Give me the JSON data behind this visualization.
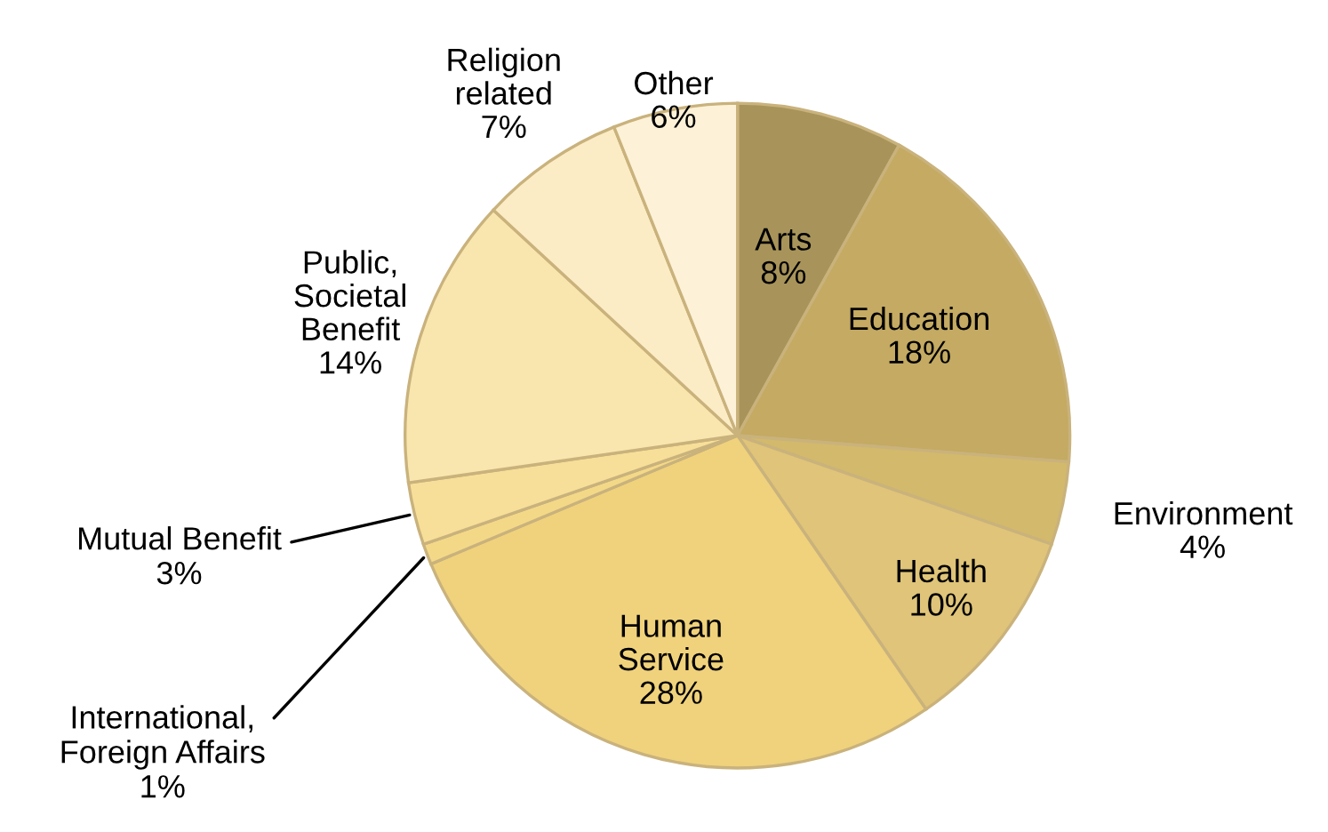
{
  "chart_data": {
    "type": "pie",
    "categories": [
      "Arts",
      "Education",
      "Environment",
      "Health",
      "Human\nService",
      "International,\nForeign Affairs",
      "Mutual Benefit",
      "Public,\nSocietal\nBenefit",
      "Religion\nrelated",
      "Other"
    ],
    "values": [
      8,
      18,
      4,
      10,
      28,
      1,
      3,
      14,
      7,
      6
    ],
    "value_labels": [
      "8%",
      "18%",
      "4%",
      "10%",
      "28%",
      "1%",
      "3%",
      "14%",
      "7%",
      "6%"
    ],
    "colors": [
      "#a8945a",
      "#c4aa62",
      "#d3b96c",
      "#dfc479",
      "#f0d27c",
      "#f3d888",
      "#f7df99",
      "#f9e5ae",
      "#fbecc6",
      "#fdf1d8"
    ],
    "legend": false
  }
}
